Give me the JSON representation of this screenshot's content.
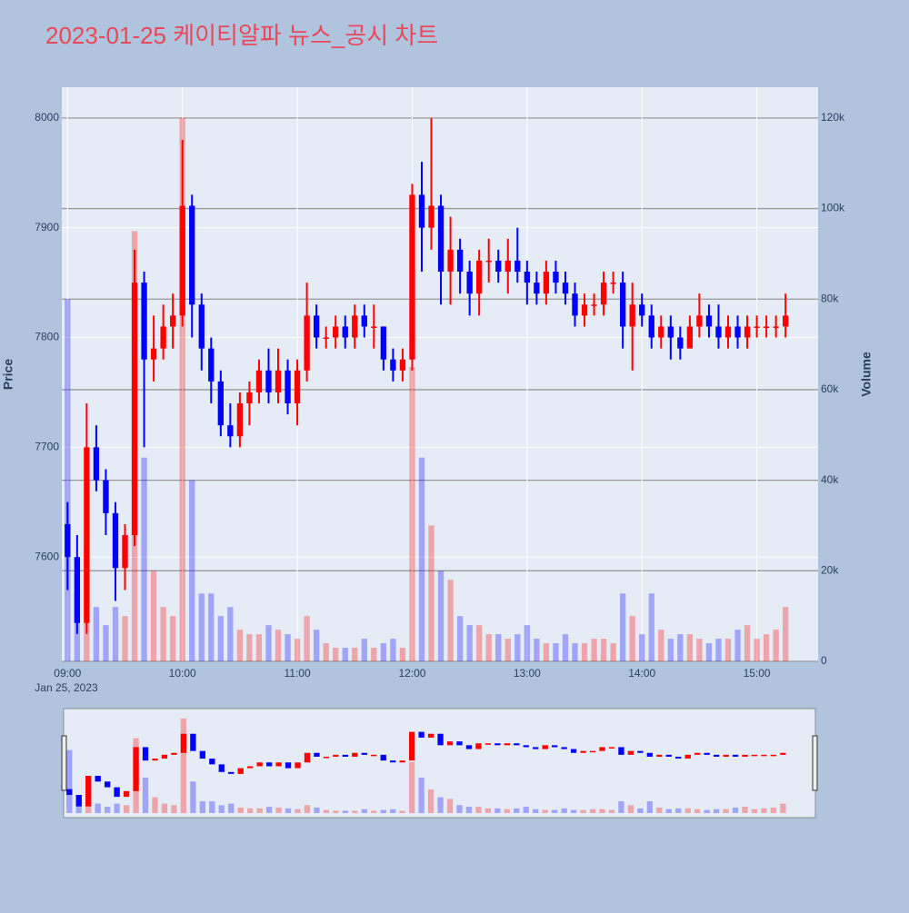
{
  "chart_data": {
    "type": "candlestick",
    "title": "2023-01-25 케이티알파 뉴스_공시 차트",
    "y_label": "Price",
    "y2_label": "Volume",
    "x_date_label": "Jan 25, 2023",
    "increasing_color": "#ff0000",
    "decreasing_color": "#0000ff",
    "ylim": [
      7505,
      8028
    ],
    "yticks": [
      7600,
      7700,
      7800,
      7900,
      8000
    ],
    "y2lim": [
      0,
      126800
    ],
    "y2ticks": [
      0,
      {
        "value": 20000,
        "label": "20k"
      },
      {
        "value": 40000,
        "label": "40k"
      },
      {
        "value": 60000,
        "label": "60k"
      },
      {
        "value": 80000,
        "label": "80k"
      },
      {
        "value": 100000,
        "label": "100k"
      },
      {
        "value": 120000,
        "label": "120k"
      }
    ],
    "xlim": [
      "2023-01-25 08:57",
      "2023-01-25 15:32"
    ],
    "xticks": [
      {
        "value": "2023-01-25 09:00",
        "label": "09:00"
      },
      {
        "value": "2023-01-25 10:00",
        "label": "10:00"
      },
      {
        "value": "2023-01-25 11:00",
        "label": "11:00"
      },
      {
        "value": "2023-01-25 12:00",
        "label": "12:00"
      },
      {
        "value": "2023-01-25 13:00",
        "label": "13:00"
      },
      {
        "value": "2023-01-25 14:00",
        "label": "14:00"
      },
      {
        "value": "2023-01-25 15:00",
        "label": "15:00"
      }
    ],
    "x": [
      "2023-01-25 09:00",
      "2023-01-25 09:05",
      "2023-01-25 09:10",
      "2023-01-25 09:15",
      "2023-01-25 09:20",
      "2023-01-25 09:25",
      "2023-01-25 09:30",
      "2023-01-25 09:35",
      "2023-01-25 09:40",
      "2023-01-25 09:45",
      "2023-01-25 09:50",
      "2023-01-25 09:55",
      "2023-01-25 10:00",
      "2023-01-25 10:05",
      "2023-01-25 10:10",
      "2023-01-25 10:15",
      "2023-01-25 10:20",
      "2023-01-25 10:25",
      "2023-01-25 10:30",
      "2023-01-25 10:35",
      "2023-01-25 10:40",
      "2023-01-25 10:45",
      "2023-01-25 10:50",
      "2023-01-25 10:55",
      "2023-01-25 11:00",
      "2023-01-25 11:05",
      "2023-01-25 11:10",
      "2023-01-25 11:15",
      "2023-01-25 11:20",
      "2023-01-25 11:25",
      "2023-01-25 11:30",
      "2023-01-25 11:35",
      "2023-01-25 11:40",
      "2023-01-25 11:45",
      "2023-01-25 11:50",
      "2023-01-25 11:55",
      "2023-01-25 12:00",
      "2023-01-25 12:05",
      "2023-01-25 12:10",
      "2023-01-25 12:15",
      "2023-01-25 12:20",
      "2023-01-25 12:25",
      "2023-01-25 12:30",
      "2023-01-25 12:35",
      "2023-01-25 12:40",
      "2023-01-25 12:45",
      "2023-01-25 12:50",
      "2023-01-25 12:55",
      "2023-01-25 13:00",
      "2023-01-25 13:05",
      "2023-01-25 13:10",
      "2023-01-25 13:15",
      "2023-01-25 13:20",
      "2023-01-25 13:25",
      "2023-01-25 13:30",
      "2023-01-25 13:35",
      "2023-01-25 13:40",
      "2023-01-25 13:45",
      "2023-01-25 13:50",
      "2023-01-25 13:55",
      "2023-01-25 14:00",
      "2023-01-25 14:05",
      "2023-01-25 14:10",
      "2023-01-25 14:15",
      "2023-01-25 14:20",
      "2023-01-25 14:25",
      "2023-01-25 14:30",
      "2023-01-25 14:35",
      "2023-01-25 14:40",
      "2023-01-25 14:45",
      "2023-01-25 14:50",
      "2023-01-25 14:55",
      "2023-01-25 15:00",
      "2023-01-25 15:05",
      "2023-01-25 15:10",
      "2023-01-25 15:15"
    ],
    "open": [
      7630,
      7600,
      7540,
      7700,
      7670,
      7640,
      7590,
      7620,
      7850,
      7780,
      7790,
      7810,
      7820,
      7920,
      7830,
      7790,
      7760,
      7720,
      7710,
      7740,
      7750,
      7770,
      7750,
      7770,
      7740,
      7770,
      7820,
      7800,
      7800,
      7810,
      7800,
      7820,
      7810,
      7810,
      7780,
      7770,
      7780,
      7930,
      7900,
      7920,
      7860,
      7880,
      7860,
      7840,
      7870,
      7870,
      7860,
      7870,
      7860,
      7850,
      7840,
      7860,
      7850,
      7840,
      7820,
      7830,
      7830,
      7850,
      7850,
      7810,
      7830,
      7820,
      7800,
      7810,
      7800,
      7790,
      7810,
      7820,
      7810,
      7800,
      7810,
      7800,
      7810,
      7810,
      7810,
      7810
    ],
    "high": [
      7650,
      7620,
      7740,
      7720,
      7680,
      7650,
      7630,
      7880,
      7860,
      7820,
      7830,
      7840,
      7980,
      7930,
      7840,
      7800,
      7770,
      7740,
      7750,
      7760,
      7780,
      7790,
      7790,
      7780,
      7780,
      7850,
      7830,
      7810,
      7820,
      7820,
      7830,
      7830,
      7830,
      7810,
      7790,
      7790,
      7940,
      7960,
      8000,
      7930,
      7910,
      7890,
      7870,
      7880,
      7890,
      7880,
      7890,
      7900,
      7870,
      7860,
      7870,
      7870,
      7860,
      7850,
      7840,
      7840,
      7860,
      7860,
      7860,
      7850,
      7840,
      7830,
      7820,
      7820,
      7810,
      7820,
      7840,
      7830,
      7830,
      7820,
      7820,
      7820,
      7820,
      7820,
      7820,
      7840
    ],
    "low": [
      7570,
      7530,
      7530,
      7660,
      7620,
      7560,
      7570,
      7610,
      7700,
      7760,
      7780,
      7790,
      7810,
      7800,
      7770,
      7740,
      7710,
      7700,
      7700,
      7720,
      7740,
      7740,
      7740,
      7730,
      7720,
      7760,
      7790,
      7790,
      7790,
      7790,
      7790,
      7800,
      7790,
      7770,
      7760,
      7760,
      7770,
      7860,
      7880,
      7830,
      7830,
      7840,
      7820,
      7820,
      7850,
      7850,
      7840,
      7850,
      7830,
      7830,
      7830,
      7840,
      7830,
      7810,
      7810,
      7820,
      7820,
      7840,
      7790,
      7770,
      7810,
      7790,
      7790,
      7780,
      7780,
      7790,
      7800,
      7800,
      7790,
      7790,
      7790,
      7790,
      7800,
      7800,
      7800,
      7800
    ],
    "close": [
      7600,
      7540,
      7700,
      7670,
      7640,
      7590,
      7620,
      7850,
      7780,
      7790,
      7810,
      7820,
      7920,
      7830,
      7790,
      7760,
      7720,
      7710,
      7740,
      7750,
      7770,
      7750,
      7770,
      7740,
      7770,
      7820,
      7800,
      7800,
      7810,
      7800,
      7820,
      7810,
      7810,
      7780,
      7770,
      7780,
      7930,
      7900,
      7920,
      7860,
      7880,
      7860,
      7840,
      7870,
      7870,
      7860,
      7870,
      7860,
      7850,
      7840,
      7860,
      7850,
      7840,
      7820,
      7830,
      7830,
      7850,
      7850,
      7810,
      7830,
      7820,
      7800,
      7810,
      7800,
      7790,
      7810,
      7820,
      7810,
      7800,
      7810,
      7800,
      7810,
      7810,
      7810,
      7810,
      7820
    ],
    "volume": [
      80000,
      15000,
      25000,
      12000,
      8000,
      12000,
      10000,
      95000,
      45000,
      20000,
      12000,
      10000,
      120000,
      40000,
      15000,
      15000,
      10000,
      12000,
      7000,
      6000,
      6000,
      8000,
      7000,
      6000,
      5000,
      10000,
      7000,
      4000,
      3000,
      3000,
      3000,
      5000,
      3000,
      4000,
      5000,
      3000,
      65000,
      45000,
      30000,
      20000,
      18000,
      10000,
      8000,
      8000,
      6000,
      6000,
      5000,
      6000,
      8000,
      5000,
      4000,
      4000,
      6000,
      4000,
      4000,
      5000,
      5000,
      4000,
      15000,
      10000,
      6000,
      15000,
      7000,
      5000,
      6000,
      6000,
      5000,
      4000,
      5000,
      5000,
      7000,
      8000,
      5000,
      6000,
      7000,
      12000
    ]
  }
}
